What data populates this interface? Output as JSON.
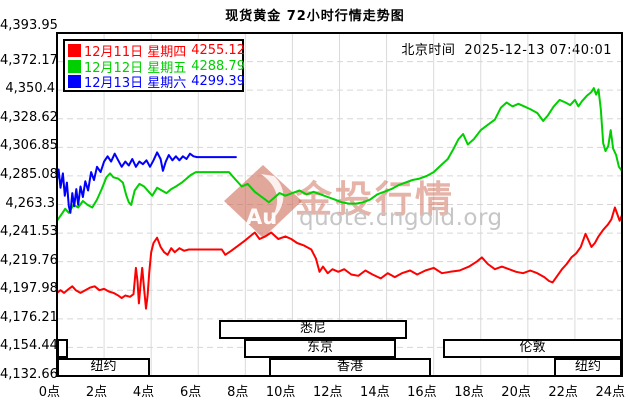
{
  "header": {
    "title": "现货黄金 72小时行情走势图",
    "beijing_time_label": "北京时间",
    "beijing_time_value": "2025-12-13 07:40:01"
  },
  "legend": {
    "items": [
      {
        "label": "12月11日 星期四",
        "value": "4255.12",
        "color": "#ff0000"
      },
      {
        "label": "12月12日 星期五",
        "value": "4288.79",
        "color": "#00cf00"
      },
      {
        "label": "12月13日 星期六",
        "value": "4299.39",
        "color": "#0000ff"
      }
    ]
  },
  "watermark": {
    "logo_text": "Au",
    "brand": "金投行情",
    "url": "quote.cngold.org"
  },
  "chart_data": {
    "type": "line",
    "title": "现货黄金 72小时行情走势图",
    "x_unit": "北京时间 (hours 0-24)",
    "xlim": [
      0,
      24
    ],
    "ylim": [
      4132.66,
      4393.95
    ],
    "x_tick_labels": [
      "0点",
      "2点",
      "4点",
      "6点",
      "8点",
      "10点",
      "12点",
      "14点",
      "16点",
      "18点",
      "20点",
      "22点",
      "24点"
    ],
    "y_tick_labels": [
      "4,393.95",
      "4,372.17",
      "4,350.4",
      "4,328.62",
      "4,306.85",
      "4,285.08",
      "4,263.3",
      "4,241.53",
      "4,219.76",
      "4,197.98",
      "4,176.21",
      "4,154.44",
      "4,132.66"
    ],
    "grid": true,
    "legend_position": "top-left",
    "series": [
      {
        "name": "12月11日 星期四",
        "color": "#ff0000",
        "close": 4255.12,
        "points": [
          [
            0,
            4196
          ],
          [
            0.15,
            4198
          ],
          [
            0.3,
            4196
          ],
          [
            0.5,
            4199
          ],
          [
            0.65,
            4201
          ],
          [
            0.8,
            4198
          ],
          [
            1.0,
            4196
          ],
          [
            1.2,
            4198
          ],
          [
            1.4,
            4200
          ],
          [
            1.6,
            4201
          ],
          [
            1.8,
            4198
          ],
          [
            2.0,
            4199
          ],
          [
            2.2,
            4197
          ],
          [
            2.4,
            4196
          ],
          [
            2.6,
            4194
          ],
          [
            2.75,
            4192
          ],
          [
            2.9,
            4194
          ],
          [
            3.1,
            4193
          ],
          [
            3.25,
            4195
          ],
          [
            3.35,
            4215
          ],
          [
            3.42,
            4205
          ],
          [
            3.48,
            4188
          ],
          [
            3.55,
            4203
          ],
          [
            3.62,
            4215
          ],
          [
            3.7,
            4199
          ],
          [
            3.78,
            4184
          ],
          [
            3.85,
            4194
          ],
          [
            3.92,
            4212
          ],
          [
            4.0,
            4227
          ],
          [
            4.1,
            4234
          ],
          [
            4.25,
            4238
          ],
          [
            4.4,
            4231
          ],
          [
            4.55,
            4227
          ],
          [
            4.7,
            4225
          ],
          [
            4.85,
            4230
          ],
          [
            5.0,
            4227
          ],
          [
            5.2,
            4230
          ],
          [
            5.4,
            4228
          ],
          [
            5.6,
            4229
          ],
          [
            5.9,
            4229
          ],
          [
            6.3,
            4229
          ],
          [
            6.7,
            4229
          ],
          [
            7.0,
            4229
          ],
          [
            7.15,
            4225
          ],
          [
            7.4,
            4228
          ],
          [
            7.7,
            4232
          ],
          [
            8.0,
            4236
          ],
          [
            8.2,
            4239
          ],
          [
            8.4,
            4242
          ],
          [
            8.6,
            4237
          ],
          [
            8.85,
            4239
          ],
          [
            9.1,
            4242
          ],
          [
            9.4,
            4237
          ],
          [
            9.7,
            4239
          ],
          [
            9.95,
            4237
          ],
          [
            10.2,
            4234
          ],
          [
            10.5,
            4232
          ],
          [
            10.8,
            4229
          ],
          [
            11.0,
            4222
          ],
          [
            11.15,
            4212
          ],
          [
            11.3,
            4216
          ],
          [
            11.5,
            4211
          ],
          [
            11.7,
            4214
          ],
          [
            11.95,
            4212
          ],
          [
            12.2,
            4214
          ],
          [
            12.5,
            4210
          ],
          [
            12.8,
            4209
          ],
          [
            13.1,
            4213
          ],
          [
            13.4,
            4210
          ],
          [
            13.75,
            4207
          ],
          [
            14.05,
            4211
          ],
          [
            14.35,
            4208
          ],
          [
            14.65,
            4211
          ],
          [
            15.0,
            4213
          ],
          [
            15.3,
            4210
          ],
          [
            15.65,
            4213
          ],
          [
            16.0,
            4215
          ],
          [
            16.35,
            4211
          ],
          [
            16.7,
            4212
          ],
          [
            17.1,
            4213
          ],
          [
            17.5,
            4216
          ],
          [
            17.85,
            4220
          ],
          [
            18.05,
            4223
          ],
          [
            18.3,
            4218
          ],
          [
            18.6,
            4214
          ],
          [
            18.9,
            4216
          ],
          [
            19.2,
            4214
          ],
          [
            19.5,
            4212
          ],
          [
            19.8,
            4211
          ],
          [
            20.1,
            4213
          ],
          [
            20.4,
            4211
          ],
          [
            20.7,
            4208
          ],
          [
            20.9,
            4205
          ],
          [
            21.05,
            4204
          ],
          [
            21.25,
            4209
          ],
          [
            21.45,
            4214
          ],
          [
            21.65,
            4218
          ],
          [
            21.85,
            4223
          ],
          [
            22.05,
            4226
          ],
          [
            22.25,
            4231
          ],
          [
            22.45,
            4241
          ],
          [
            22.55,
            4237
          ],
          [
            22.7,
            4231
          ],
          [
            22.85,
            4234
          ],
          [
            23.0,
            4239
          ],
          [
            23.2,
            4244
          ],
          [
            23.4,
            4248
          ],
          [
            23.55,
            4252
          ],
          [
            23.7,
            4261
          ],
          [
            23.8,
            4256
          ],
          [
            23.9,
            4251
          ],
          [
            24.0,
            4255.12
          ]
        ]
      },
      {
        "name": "12月12日 星期五",
        "color": "#00cf00",
        "close": 4288.79,
        "points": [
          [
            0,
            4251
          ],
          [
            0.2,
            4256
          ],
          [
            0.35,
            4260
          ],
          [
            0.5,
            4257
          ],
          [
            0.7,
            4263
          ],
          [
            0.9,
            4261
          ],
          [
            1.1,
            4266
          ],
          [
            1.3,
            4263
          ],
          [
            1.5,
            4261
          ],
          [
            1.7,
            4267
          ],
          [
            1.9,
            4275
          ],
          [
            2.1,
            4284
          ],
          [
            2.25,
            4287
          ],
          [
            2.4,
            4284
          ],
          [
            2.6,
            4283
          ],
          [
            2.8,
            4280
          ],
          [
            2.95,
            4270
          ],
          [
            3.05,
            4265
          ],
          [
            3.15,
            4263
          ],
          [
            3.3,
            4274
          ],
          [
            3.5,
            4279
          ],
          [
            3.7,
            4277
          ],
          [
            3.9,
            4273
          ],
          [
            4.05,
            4270
          ],
          [
            4.25,
            4276
          ],
          [
            4.45,
            4274
          ],
          [
            4.65,
            4272
          ],
          [
            4.85,
            4275
          ],
          [
            5.05,
            4277
          ],
          [
            5.3,
            4280
          ],
          [
            5.5,
            4283
          ],
          [
            5.7,
            4286
          ],
          [
            5.9,
            4288
          ],
          [
            6.3,
            4288
          ],
          [
            6.8,
            4288
          ],
          [
            7.3,
            4288
          ],
          [
            7.6,
            4282
          ],
          [
            7.85,
            4277
          ],
          [
            8.1,
            4279
          ],
          [
            8.4,
            4273
          ],
          [
            8.7,
            4269
          ],
          [
            9.0,
            4265
          ],
          [
            9.2,
            4268
          ],
          [
            9.45,
            4272
          ],
          [
            9.7,
            4270
          ],
          [
            10.0,
            4272
          ],
          [
            10.3,
            4274
          ],
          [
            10.6,
            4271
          ],
          [
            10.9,
            4273
          ],
          [
            11.2,
            4271
          ],
          [
            11.5,
            4269
          ],
          [
            11.8,
            4267
          ],
          [
            12.1,
            4265
          ],
          [
            12.4,
            4264
          ],
          [
            12.7,
            4264
          ],
          [
            13.0,
            4265
          ],
          [
            13.3,
            4267
          ],
          [
            13.6,
            4271
          ],
          [
            13.9,
            4273
          ],
          [
            14.2,
            4275
          ],
          [
            14.5,
            4278
          ],
          [
            14.8,
            4280
          ],
          [
            15.1,
            4282
          ],
          [
            15.4,
            4283
          ],
          [
            15.7,
            4285
          ],
          [
            16.0,
            4288
          ],
          [
            16.3,
            4293
          ],
          [
            16.6,
            4298
          ],
          [
            16.85,
            4306
          ],
          [
            17.05,
            4313
          ],
          [
            17.25,
            4317
          ],
          [
            17.45,
            4309
          ],
          [
            17.7,
            4313
          ],
          [
            18.0,
            4320
          ],
          [
            18.3,
            4324
          ],
          [
            18.6,
            4328
          ],
          [
            18.85,
            4337
          ],
          [
            19.1,
            4341
          ],
          [
            19.35,
            4338
          ],
          [
            19.6,
            4340
          ],
          [
            19.85,
            4338
          ],
          [
            20.1,
            4336
          ],
          [
            20.4,
            4333
          ],
          [
            20.65,
            4327
          ],
          [
            20.85,
            4331
          ],
          [
            21.1,
            4338
          ],
          [
            21.35,
            4343
          ],
          [
            21.6,
            4341
          ],
          [
            21.8,
            4339
          ],
          [
            22.0,
            4343
          ],
          [
            22.15,
            4338
          ],
          [
            22.3,
            4342
          ],
          [
            22.5,
            4346
          ],
          [
            22.7,
            4349
          ],
          [
            22.8,
            4352
          ],
          [
            22.9,
            4347
          ],
          [
            23.0,
            4351
          ],
          [
            23.1,
            4336
          ],
          [
            23.2,
            4310
          ],
          [
            23.3,
            4304
          ],
          [
            23.42,
            4308
          ],
          [
            23.52,
            4320
          ],
          [
            23.62,
            4306
          ],
          [
            23.75,
            4301
          ],
          [
            23.87,
            4292
          ],
          [
            24.0,
            4288.79
          ]
        ]
      },
      {
        "name": "12月13日 星期六",
        "color": "#0000ff",
        "close": 4299.39,
        "points": [
          [
            0,
            4282
          ],
          [
            0.07,
            4290
          ],
          [
            0.15,
            4276
          ],
          [
            0.25,
            4287
          ],
          [
            0.33,
            4270
          ],
          [
            0.42,
            4280
          ],
          [
            0.5,
            4262
          ],
          [
            0.57,
            4257
          ],
          [
            0.65,
            4272
          ],
          [
            0.73,
            4262
          ],
          [
            0.82,
            4275
          ],
          [
            0.9,
            4263
          ],
          [
            1.0,
            4277
          ],
          [
            1.1,
            4269
          ],
          [
            1.2,
            4281
          ],
          [
            1.32,
            4274
          ],
          [
            1.45,
            4288
          ],
          [
            1.57,
            4282
          ],
          [
            1.7,
            4292
          ],
          [
            1.85,
            4288
          ],
          [
            2.0,
            4296
          ],
          [
            2.15,
            4300
          ],
          [
            2.3,
            4296
          ],
          [
            2.45,
            4302
          ],
          [
            2.6,
            4297
          ],
          [
            2.75,
            4292
          ],
          [
            2.9,
            4296
          ],
          [
            3.05,
            4293
          ],
          [
            3.2,
            4298
          ],
          [
            3.35,
            4292
          ],
          [
            3.5,
            4296
          ],
          [
            3.65,
            4294
          ],
          [
            3.8,
            4297
          ],
          [
            3.95,
            4292
          ],
          [
            4.1,
            4297
          ],
          [
            4.25,
            4303
          ],
          [
            4.4,
            4298
          ],
          [
            4.5,
            4289
          ],
          [
            4.62,
            4296
          ],
          [
            4.75,
            4301
          ],
          [
            4.9,
            4297
          ],
          [
            5.05,
            4300
          ],
          [
            5.2,
            4297
          ],
          [
            5.35,
            4300
          ],
          [
            5.5,
            4298
          ],
          [
            5.65,
            4302
          ],
          [
            5.8,
            4300
          ],
          [
            5.95,
            4299.4
          ],
          [
            7.6,
            4299.39
          ]
        ]
      }
    ],
    "sessions": [
      {
        "label": "悉尼",
        "row": 0,
        "start": 6.9,
        "end": 14.9
      },
      {
        "label": "",
        "row": 1,
        "start": 0,
        "end": 0.45
      },
      {
        "label": "东京",
        "row": 1,
        "start": 7.95,
        "end": 14.4
      },
      {
        "label": "伦敦",
        "row": 1,
        "start": 16.4,
        "end": 24
      },
      {
        "label": "纽约",
        "row": 2,
        "start": 0,
        "end": 3.95
      },
      {
        "label": "香港",
        "row": 2,
        "start": 9.0,
        "end": 15.9
      },
      {
        "label": "纽约",
        "row": 2,
        "start": 21.1,
        "end": 24
      }
    ]
  }
}
